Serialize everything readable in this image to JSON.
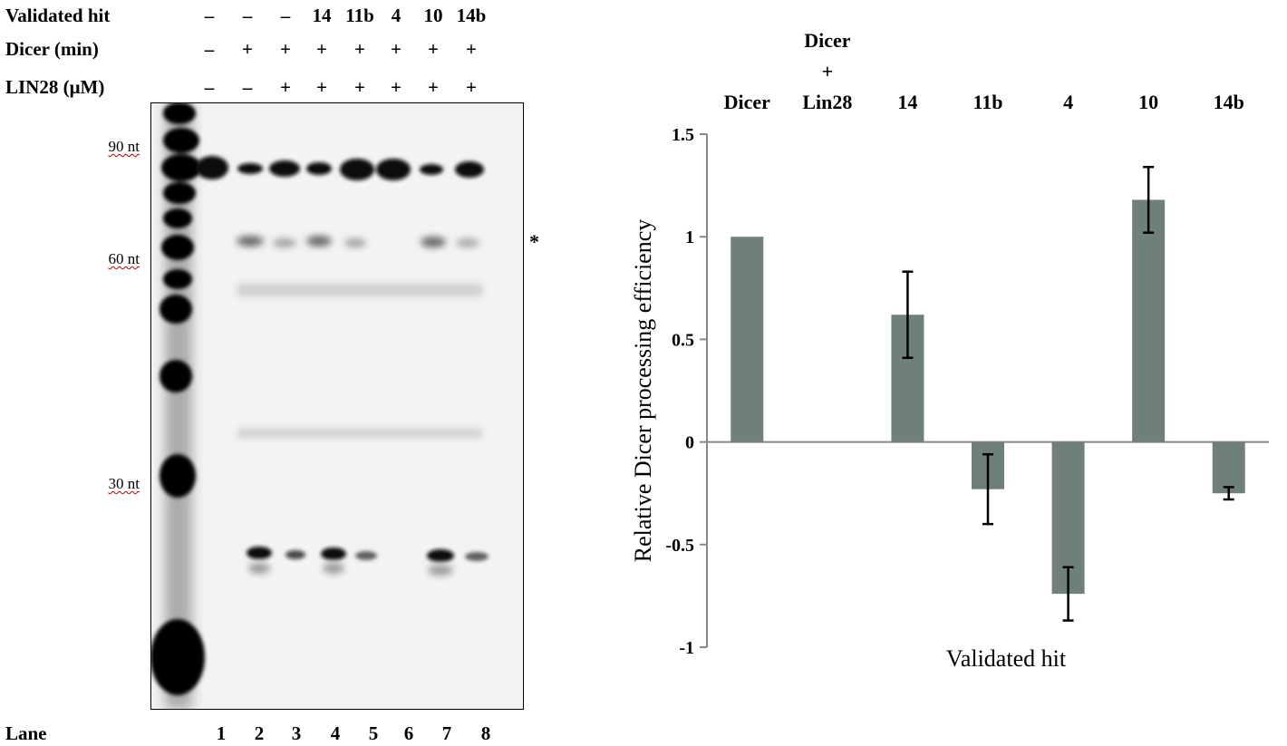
{
  "gel": {
    "rows": [
      {
        "label": "Validated hit",
        "cells": [
          "–",
          "–",
          "–",
          "14",
          "11b",
          "4",
          "10",
          "14b"
        ]
      },
      {
        "label": "Dicer (min)",
        "cells": [
          "–",
          "+",
          "+",
          "+",
          "+",
          "+",
          "+",
          "+"
        ]
      },
      {
        "label": "LIN28 (μM)",
        "cells": [
          "–",
          "–",
          "+",
          "+",
          "+",
          "+",
          "+",
          "+"
        ]
      }
    ],
    "markers": [
      "90 nt",
      "60 nt",
      "30 nt"
    ],
    "asterisk": "*",
    "lane_title": "Lane",
    "lane_numbers": [
      "1",
      "2",
      "3",
      "4",
      "5",
      "6",
      "7",
      "8"
    ]
  },
  "chart_data": {
    "type": "bar",
    "categories": [
      "Dicer",
      "Dicer\n+\nLin28",
      "14",
      "11b",
      "4",
      "10",
      "14b"
    ],
    "values": [
      1.0,
      0.0,
      0.62,
      -0.23,
      -0.74,
      1.18,
      -0.25
    ],
    "error": [
      0,
      0,
      0.21,
      0.17,
      0.13,
      0.16,
      0.03
    ],
    "xlabel": "Validated hit",
    "ylabel": "Relative Dicer processing efficiency",
    "ylim": [
      -1,
      1.5
    ],
    "yticks": [
      "-1",
      "-0.5",
      "0",
      "0.5",
      "1",
      "1.5"
    ],
    "grid": false,
    "bar_color": "#6f7f79"
  }
}
